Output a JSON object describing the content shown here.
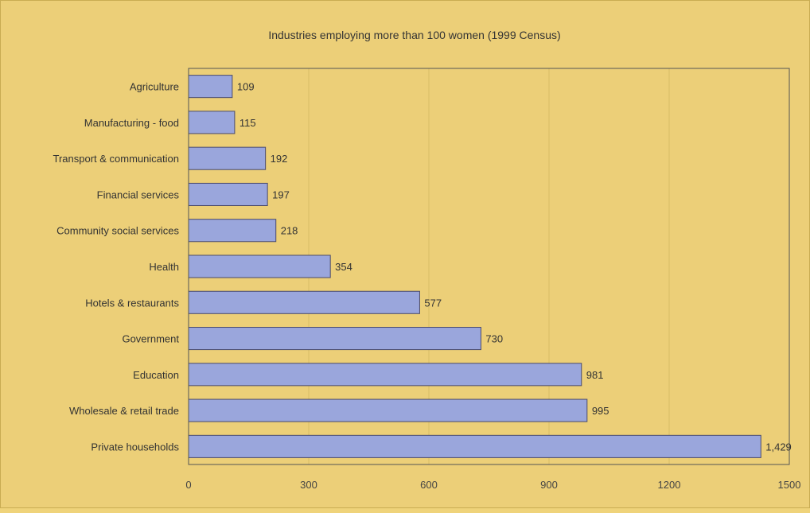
{
  "colors": {
    "background": "#eccf78",
    "bar_fill": "#9aa6dc",
    "bar_stroke": "#4a4a6a",
    "gridline": "#d9bd66",
    "axis": "#555555"
  },
  "chart_data": {
    "type": "bar",
    "orientation": "horizontal",
    "title": "Industries employing more than 100 women (1999 Census)",
    "xlabel": "",
    "ylabel": "",
    "categories": [
      "Agriculture",
      "Manufacturing - food",
      "Transport & communication",
      "Financial services",
      "Community social services",
      "Health",
      "Hotels & restaurants",
      "Government",
      "Education",
      "Wholesale & retail trade",
      "Private households"
    ],
    "values": [
      109,
      115,
      192,
      197,
      218,
      354,
      577,
      730,
      981,
      995,
      1429
    ],
    "value_labels": [
      "109",
      "115",
      "192",
      "197",
      "218",
      "354",
      "577",
      "730",
      "981",
      "995",
      "1,429"
    ],
    "xlim": [
      0,
      1500
    ],
    "xticks": [
      0,
      300,
      600,
      900,
      1200,
      1500
    ],
    "xtick_labels": [
      "0",
      "300",
      "600",
      "900",
      "1200",
      "1500"
    ],
    "grid": "vertical",
    "legend": "none"
  }
}
